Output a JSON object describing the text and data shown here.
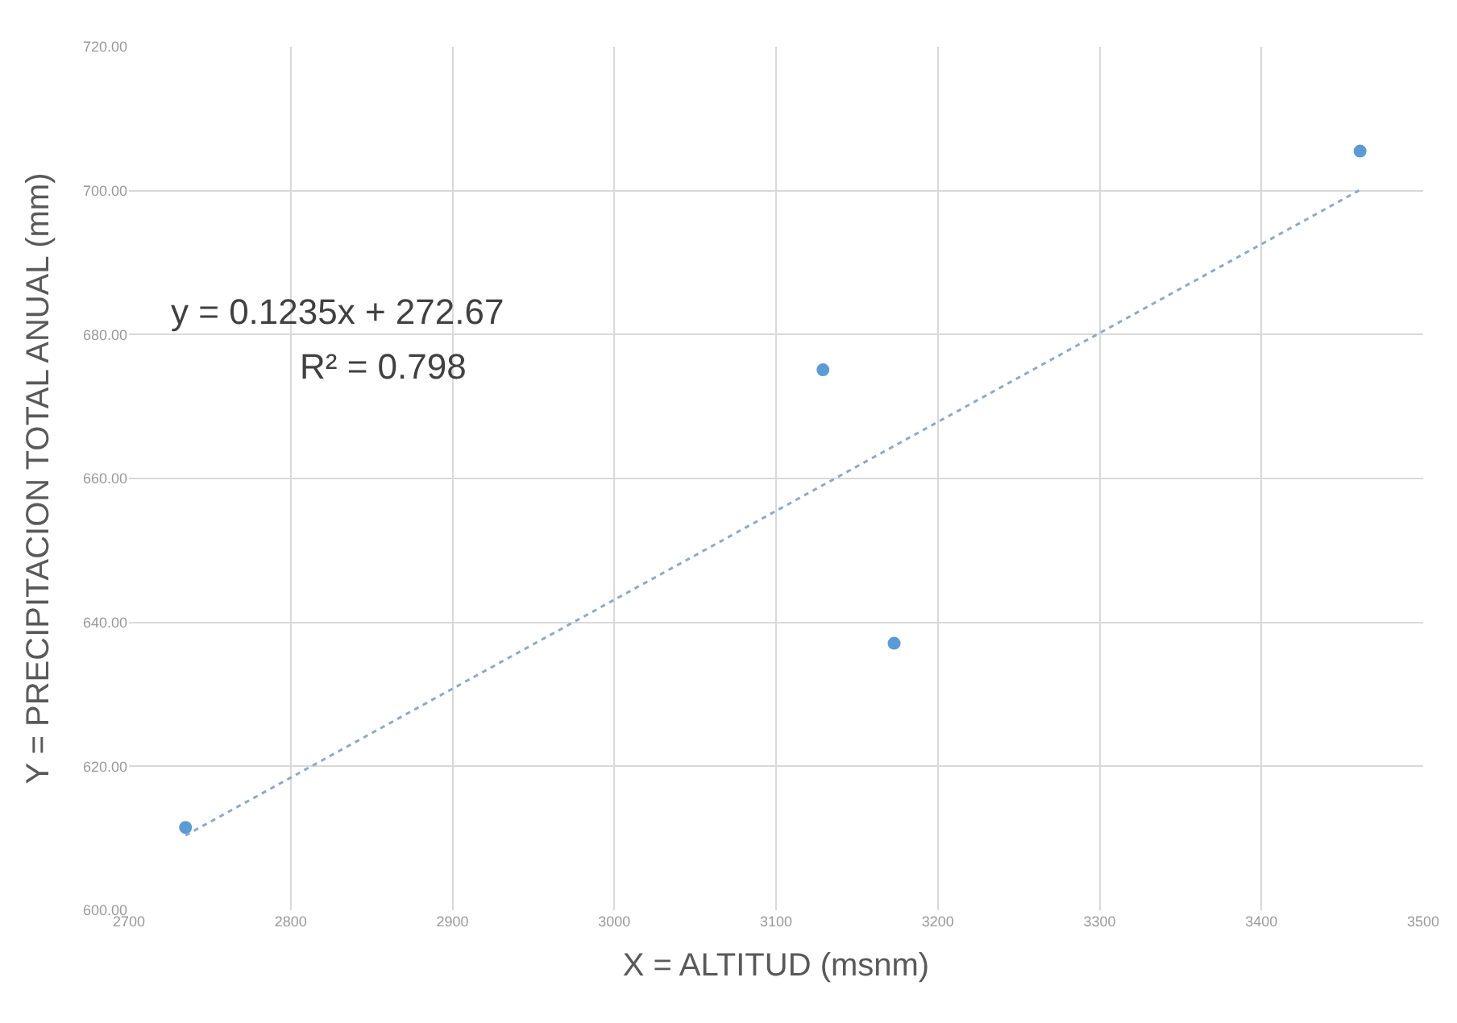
{
  "chart_data": {
    "type": "scatter",
    "xlabel": "X = ALTITUD (msnm)",
    "ylabel": "Y = PRECIPITACION TOTAL ANUAL (mm)",
    "annotations": [
      "y = 0.1235x + 272.67",
      "R² = 0.798"
    ],
    "x": [
      2735,
      3129,
      3173,
      3461
    ],
    "series": [
      {
        "color": "#5b9bd5",
        "values": [
          611.5,
          675.1,
          637.1,
          705.5
        ],
        "marker": "circle"
      },
      {
        "type": "line",
        "color": "#8fa8c8",
        "x": [
          2735,
          3461
        ],
        "values": [
          610.4,
          700.1
        ],
        "marker": "none",
        "line_style": "dotted"
      }
    ],
    "xlim": [
      2700,
      3500
    ],
    "xticks": [
      2700,
      2800,
      2900,
      3000,
      3100,
      3200,
      3300,
      3400,
      3500
    ],
    "ylim": [
      600,
      720
    ],
    "yticks": [
      {
        "value": 600,
        "label": "600.00"
      },
      {
        "value": 620,
        "label": "620.00"
      },
      {
        "value": 640,
        "label": "640.00"
      },
      {
        "value": 660,
        "label": "660.00"
      },
      {
        "value": 680,
        "label": "680.00"
      },
      {
        "value": 700,
        "label": "700.00"
      },
      {
        "value": 720,
        "label": "720.00"
      }
    ],
    "grid": true
  }
}
